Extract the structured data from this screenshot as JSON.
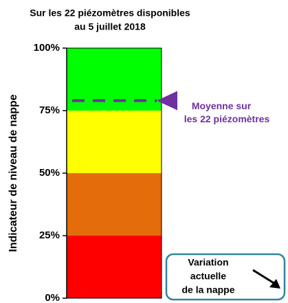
{
  "chart_data": {
    "type": "bar",
    "title_lines": [
      "Sur les 22 piézomètres disponibles",
      "au 5 juillet 2018"
    ],
    "ylabel": "Indicateur de niveau de nappe",
    "categories": [
      null
    ],
    "series": [
      {
        "color": "#ff0000",
        "values": [
          25
        ]
      },
      {
        "color": "#e46c0a",
        "values": [
          25
        ]
      },
      {
        "color": "#ffff00",
        "values": [
          25
        ]
      },
      {
        "color": "#00ff00",
        "values": [
          25
        ]
      }
    ],
    "ylim": [
      0,
      100
    ],
    "yticks": [
      {
        "value": 0,
        "label": "0%"
      },
      {
        "value": 25,
        "label": "25%"
      },
      {
        "value": 50,
        "label": "50%"
      },
      {
        "value": 75,
        "label": "75%"
      },
      {
        "value": 100,
        "label": "100%"
      }
    ],
    "mean_line": {
      "value": 79,
      "color": "#7030a0",
      "label_lines": [
        "Moyenne sur",
        "les 22 piézomètres"
      ]
    },
    "legend_box": {
      "color": "#31849b",
      "lines": [
        "Variation",
        "actuelle",
        "de la nappe"
      ]
    }
  }
}
